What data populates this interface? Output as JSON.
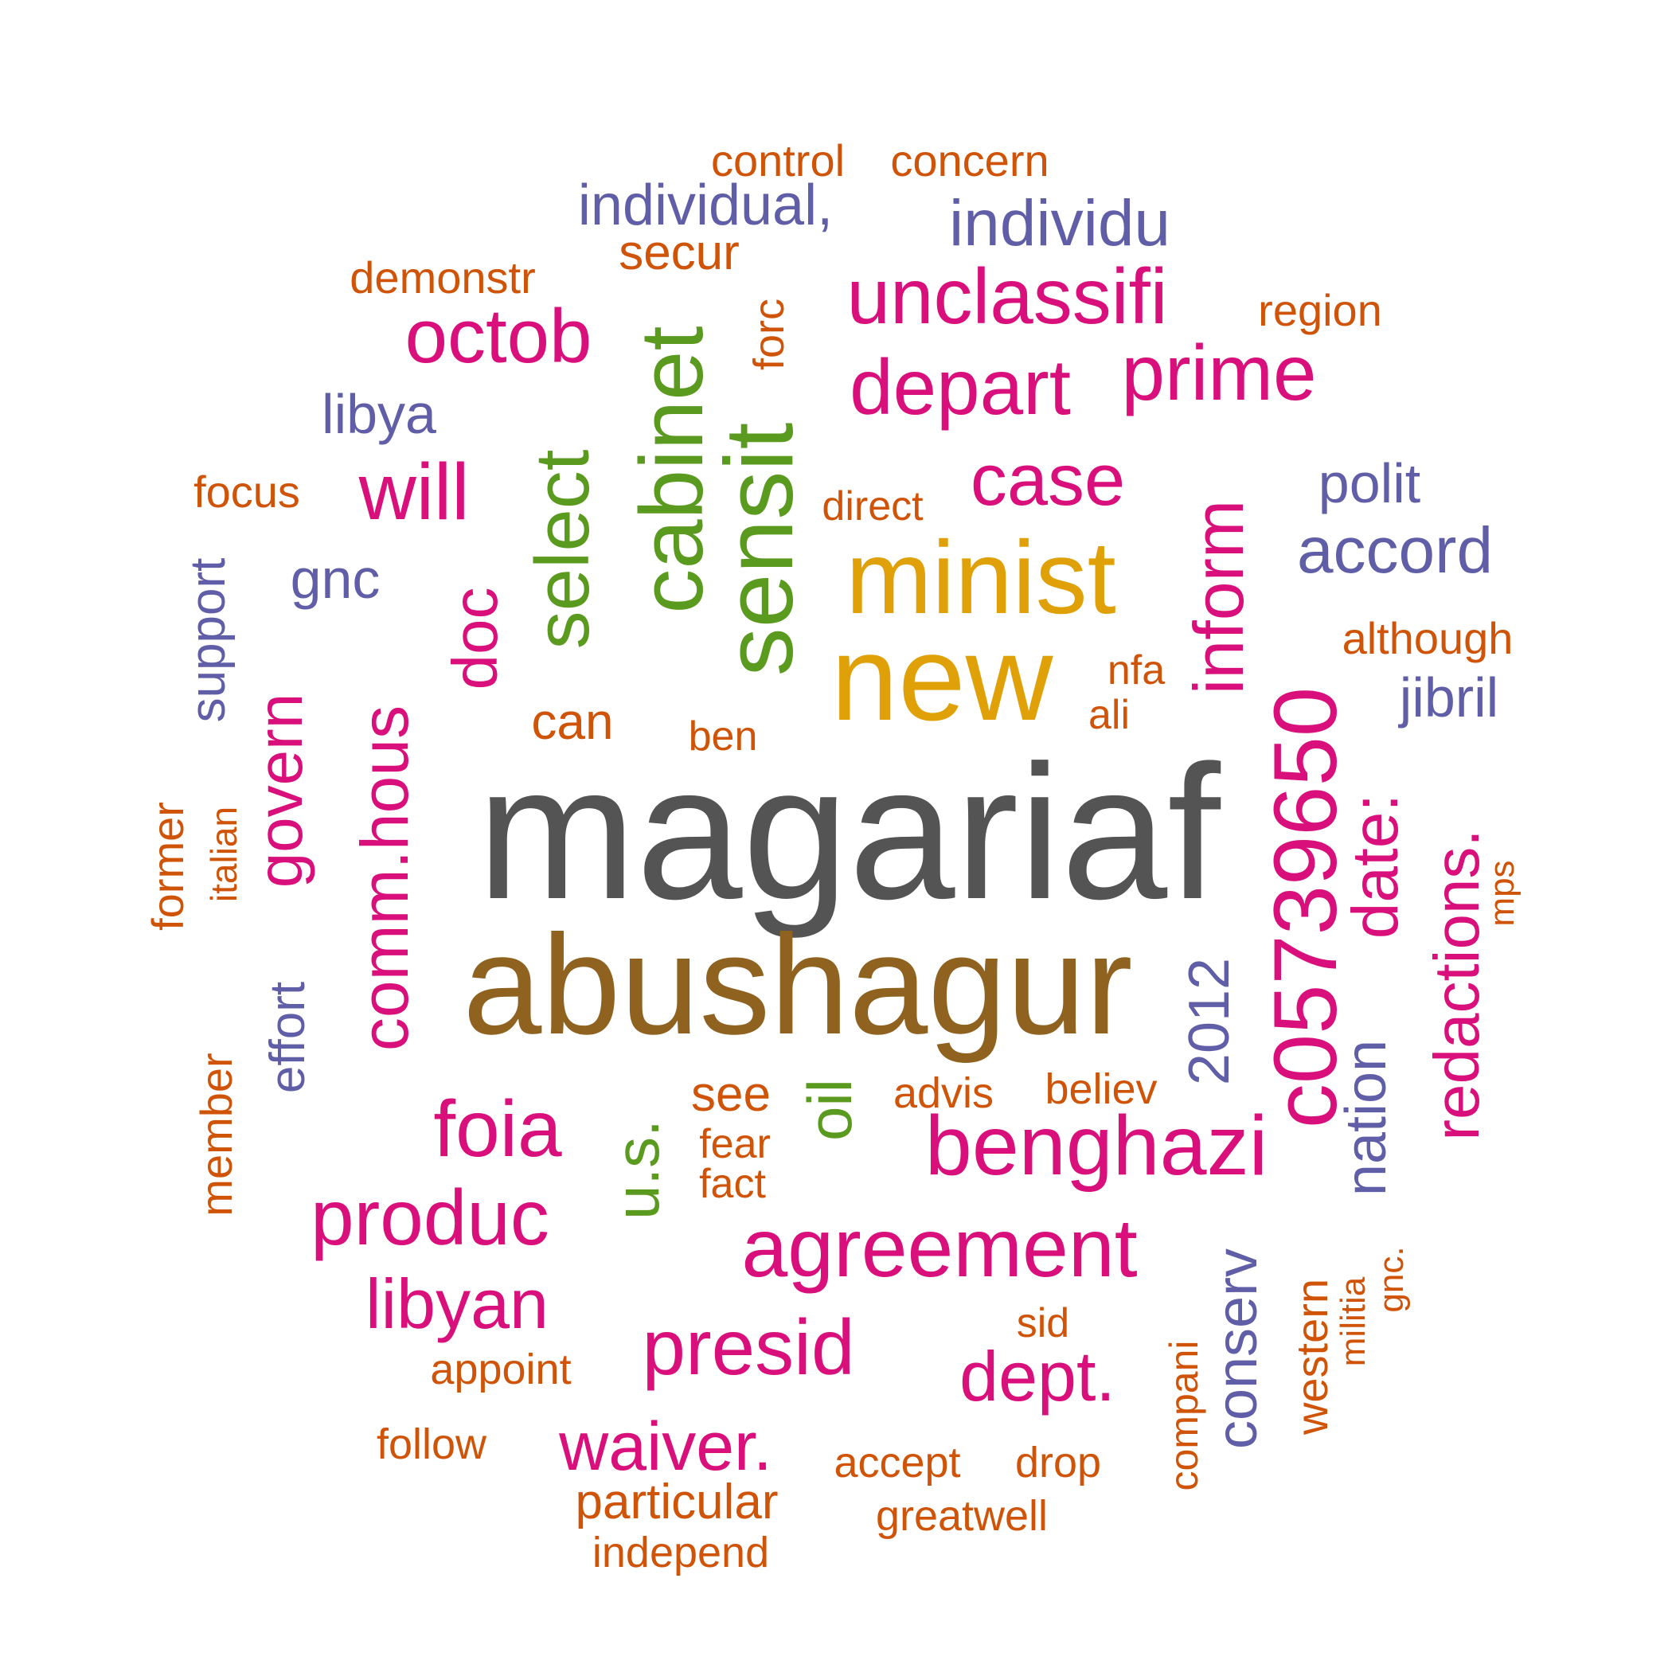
{
  "colors": {
    "gray": "#545454",
    "brown": "#8f6220",
    "gold": "#e0a008",
    "magenta": "#d9107c",
    "green": "#5a9a1e",
    "purple": "#615ea8",
    "orange": "#cf5408"
  },
  "words": [
    {
      "text": "magariaf",
      "color": "gray"
    },
    {
      "text": "abushagur",
      "color": "brown"
    },
    {
      "text": "new",
      "color": "gold"
    },
    {
      "text": "minist",
      "color": "gold"
    },
    {
      "text": "c05739650",
      "color": "magenta"
    },
    {
      "text": "sensit",
      "color": "green"
    },
    {
      "text": "cabinet",
      "color": "green"
    },
    {
      "text": "select",
      "color": "green"
    },
    {
      "text": "benghazi",
      "color": "magenta"
    },
    {
      "text": "agreement",
      "color": "magenta"
    },
    {
      "text": "unclassifi",
      "color": "magenta"
    },
    {
      "text": "depart",
      "color": "magenta"
    },
    {
      "text": "prime",
      "color": "magenta"
    },
    {
      "text": "produc",
      "color": "magenta"
    },
    {
      "text": "presid",
      "color": "magenta"
    },
    {
      "text": "foia",
      "color": "magenta"
    },
    {
      "text": "octob",
      "color": "magenta"
    },
    {
      "text": "case",
      "color": "magenta"
    },
    {
      "text": "will",
      "color": "magenta"
    },
    {
      "text": "libyan",
      "color": "magenta"
    },
    {
      "text": "dept.",
      "color": "magenta"
    },
    {
      "text": "waiver.",
      "color": "magenta"
    },
    {
      "text": "comm.hous",
      "color": "magenta"
    },
    {
      "text": "inform",
      "color": "magenta"
    },
    {
      "text": "redactions.",
      "color": "magenta"
    },
    {
      "text": "date:",
      "color": "magenta"
    },
    {
      "text": "govern",
      "color": "magenta"
    },
    {
      "text": "doc",
      "color": "magenta"
    },
    {
      "text": "oil",
      "color": "green"
    },
    {
      "text": "u.s.",
      "color": "green"
    },
    {
      "text": "individu",
      "color": "purple"
    },
    {
      "text": "individual,",
      "color": "purple"
    },
    {
      "text": "accord",
      "color": "purple"
    },
    {
      "text": "polit",
      "color": "purple"
    },
    {
      "text": "jibril",
      "color": "purple"
    },
    {
      "text": "libya",
      "color": "purple"
    },
    {
      "text": "gnc",
      "color": "purple"
    },
    {
      "text": "2012",
      "color": "purple"
    },
    {
      "text": "nation",
      "color": "purple"
    },
    {
      "text": "conserv",
      "color": "purple"
    },
    {
      "text": "support",
      "color": "purple"
    },
    {
      "text": "effort",
      "color": "purple"
    },
    {
      "text": "control",
      "color": "orange"
    },
    {
      "text": "concern",
      "color": "orange"
    },
    {
      "text": "secur",
      "color": "orange"
    },
    {
      "text": "demonstr",
      "color": "orange"
    },
    {
      "text": "region",
      "color": "orange"
    },
    {
      "text": "forc",
      "color": "orange"
    },
    {
      "text": "focus",
      "color": "orange"
    },
    {
      "text": "direct",
      "color": "orange"
    },
    {
      "text": "although",
      "color": "orange"
    },
    {
      "text": "nfa",
      "color": "orange"
    },
    {
      "text": "ali",
      "color": "orange"
    },
    {
      "text": "can",
      "color": "orange"
    },
    {
      "text": "ben",
      "color": "orange"
    },
    {
      "text": "see",
      "color": "orange"
    },
    {
      "text": "advis",
      "color": "orange"
    },
    {
      "text": "believ",
      "color": "orange"
    },
    {
      "text": "fear",
      "color": "orange"
    },
    {
      "text": "fact",
      "color": "orange"
    },
    {
      "text": "sid",
      "color": "orange"
    },
    {
      "text": "appoint",
      "color": "orange"
    },
    {
      "text": "follow",
      "color": "orange"
    },
    {
      "text": "accept",
      "color": "orange"
    },
    {
      "text": "drop",
      "color": "orange"
    },
    {
      "text": "particular",
      "color": "orange"
    },
    {
      "text": "greatwell",
      "color": "orange"
    },
    {
      "text": "independ",
      "color": "orange"
    },
    {
      "text": "former",
      "color": "orange"
    },
    {
      "text": "italian",
      "color": "orange"
    },
    {
      "text": "member",
      "color": "orange"
    },
    {
      "text": "mps",
      "color": "orange"
    },
    {
      "text": "western",
      "color": "orange"
    },
    {
      "text": "militia",
      "color": "orange"
    },
    {
      "text": "gnc.",
      "color": "orange"
    },
    {
      "text": "compani",
      "color": "orange"
    }
  ]
}
